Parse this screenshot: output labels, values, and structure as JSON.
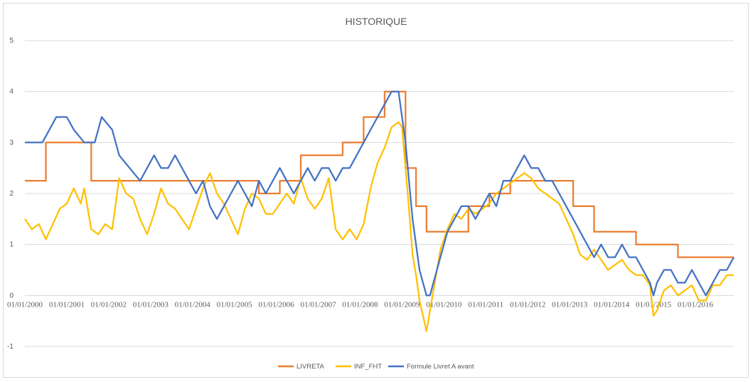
{
  "chart_data": {
    "type": "line",
    "title": "HISTORIQUE",
    "xlabel": "",
    "ylabel": "",
    "ylim": [
      -1,
      5
    ],
    "yticks": [
      -1,
      0,
      1,
      2,
      3,
      4,
      5
    ],
    "grid": true,
    "legend_position": "bottom",
    "xtick_labels": [
      "01/01/2000",
      "01/01/2001",
      "01/01/2002",
      "01/01/2003",
      "01/01/2004",
      "01/01/2005",
      "01/01/2006",
      "01/01/2007",
      "01/01/2008",
      "01/01/2009",
      "01/01/2010",
      "01/01/2011",
      "01/01/2012",
      "01/01/2013",
      "01/01/2014",
      "01/01/2015",
      "01/01/2016"
    ],
    "x_range": [
      "2000-01",
      "2016-12"
    ],
    "series": [
      {
        "name": "LIVRETA",
        "color": "#ed7d31",
        "points": [
          [
            "2000-01",
            2.25
          ],
          [
            "2000-07",
            2.25
          ],
          [
            "2000-07",
            3.0
          ],
          [
            "2001-08",
            3.0
          ],
          [
            "2001-08",
            2.25
          ],
          [
            "2003-08",
            2.25
          ],
          [
            "2003-08",
            2.25
          ],
          [
            "2005-08",
            2.25
          ],
          [
            "2005-08",
            2.0
          ],
          [
            "2006-02",
            2.0
          ],
          [
            "2006-02",
            2.25
          ],
          [
            "2006-08",
            2.25
          ],
          [
            "2006-08",
            2.75
          ],
          [
            "2007-08",
            2.75
          ],
          [
            "2007-08",
            3.0
          ],
          [
            "2008-02",
            3.0
          ],
          [
            "2008-02",
            3.5
          ],
          [
            "2008-08",
            3.5
          ],
          [
            "2008-08",
            4.0
          ],
          [
            "2009-02",
            4.0
          ],
          [
            "2009-02",
            2.5
          ],
          [
            "2009-05",
            2.5
          ],
          [
            "2009-05",
            1.75
          ],
          [
            "2009-08",
            1.75
          ],
          [
            "2009-08",
            1.25
          ],
          [
            "2010-08",
            1.25
          ],
          [
            "2010-08",
            1.75
          ],
          [
            "2011-02",
            1.75
          ],
          [
            "2011-02",
            2.0
          ],
          [
            "2011-08",
            2.0
          ],
          [
            "2011-08",
            2.25
          ],
          [
            "2013-02",
            2.25
          ],
          [
            "2013-02",
            1.75
          ],
          [
            "2013-08",
            1.75
          ],
          [
            "2013-08",
            1.25
          ],
          [
            "2014-08",
            1.25
          ],
          [
            "2014-08",
            1.0
          ],
          [
            "2015-08",
            1.0
          ],
          [
            "2015-08",
            0.75
          ],
          [
            "2016-12",
            0.75
          ]
        ]
      },
      {
        "name": "INF_FHT",
        "color": "#ffc000",
        "points": [
          [
            "2000-01",
            1.5
          ],
          [
            "2000-03",
            1.3
          ],
          [
            "2000-05",
            1.4
          ],
          [
            "2000-07",
            1.1
          ],
          [
            "2000-09",
            1.4
          ],
          [
            "2000-11",
            1.7
          ],
          [
            "2001-01",
            1.8
          ],
          [
            "2001-03",
            2.1
          ],
          [
            "2001-05",
            1.8
          ],
          [
            "2001-06",
            2.1
          ],
          [
            "2001-08",
            1.3
          ],
          [
            "2001-10",
            1.2
          ],
          [
            "2001-12",
            1.4
          ],
          [
            "2002-02",
            1.3
          ],
          [
            "2002-04",
            2.3
          ],
          [
            "2002-06",
            2.0
          ],
          [
            "2002-08",
            1.9
          ],
          [
            "2002-10",
            1.5
          ],
          [
            "2002-12",
            1.2
          ],
          [
            "2003-02",
            1.6
          ],
          [
            "2003-04",
            2.1
          ],
          [
            "2003-06",
            1.8
          ],
          [
            "2003-08",
            1.7
          ],
          [
            "2003-10",
            1.5
          ],
          [
            "2003-12",
            1.3
          ],
          [
            "2004-02",
            1.7
          ],
          [
            "2004-04",
            2.1
          ],
          [
            "2004-06",
            2.4
          ],
          [
            "2004-08",
            2.0
          ],
          [
            "2004-10",
            1.8
          ],
          [
            "2004-12",
            1.5
          ],
          [
            "2005-02",
            1.2
          ],
          [
            "2005-04",
            1.7
          ],
          [
            "2005-06",
            2.0
          ],
          [
            "2005-08",
            1.9
          ],
          [
            "2005-10",
            1.6
          ],
          [
            "2005-12",
            1.6
          ],
          [
            "2006-02",
            1.8
          ],
          [
            "2006-04",
            2.0
          ],
          [
            "2006-06",
            1.8
          ],
          [
            "2006-08",
            2.3
          ],
          [
            "2006-10",
            1.9
          ],
          [
            "2006-12",
            1.7
          ],
          [
            "2007-02",
            1.9
          ],
          [
            "2007-04",
            2.3
          ],
          [
            "2007-06",
            1.3
          ],
          [
            "2007-08",
            1.1
          ],
          [
            "2007-10",
            1.3
          ],
          [
            "2007-12",
            1.1
          ],
          [
            "2008-02",
            1.4
          ],
          [
            "2008-04",
            2.1
          ],
          [
            "2008-06",
            2.6
          ],
          [
            "2008-08",
            2.9
          ],
          [
            "2008-10",
            3.3
          ],
          [
            "2008-12",
            3.4
          ],
          [
            "2009-01",
            3.3
          ],
          [
            "2009-02",
            2.5
          ],
          [
            "2009-03",
            1.7
          ],
          [
            "2009-04",
            0.8
          ],
          [
            "2009-05",
            0.4
          ],
          [
            "2009-06",
            -0.1
          ],
          [
            "2009-07",
            -0.4
          ],
          [
            "2009-08",
            -0.7
          ],
          [
            "2009-09",
            -0.3
          ],
          [
            "2009-10",
            0.1
          ],
          [
            "2009-11",
            0.5
          ],
          [
            "2009-12",
            0.9
          ],
          [
            "2010-02",
            1.3
          ],
          [
            "2010-04",
            1.6
          ],
          [
            "2010-06",
            1.5
          ],
          [
            "2010-08",
            1.7
          ],
          [
            "2010-10",
            1.6
          ],
          [
            "2010-12",
            1.7
          ],
          [
            "2011-02",
            1.8
          ],
          [
            "2011-04",
            2.0
          ],
          [
            "2011-06",
            2.1
          ],
          [
            "2011-08",
            2.2
          ],
          [
            "2011-10",
            2.3
          ],
          [
            "2011-12",
            2.4
          ],
          [
            "2012-02",
            2.3
          ],
          [
            "2012-04",
            2.1
          ],
          [
            "2012-06",
            2.0
          ],
          [
            "2012-08",
            1.9
          ],
          [
            "2012-10",
            1.8
          ],
          [
            "2012-12",
            1.5
          ],
          [
            "2013-02",
            1.2
          ],
          [
            "2013-04",
            0.8
          ],
          [
            "2013-06",
            0.7
          ],
          [
            "2013-08",
            0.9
          ],
          [
            "2013-10",
            0.7
          ],
          [
            "2013-12",
            0.5
          ],
          [
            "2014-02",
            0.6
          ],
          [
            "2014-04",
            0.7
          ],
          [
            "2014-06",
            0.5
          ],
          [
            "2014-08",
            0.4
          ],
          [
            "2014-10",
            0.4
          ],
          [
            "2014-12",
            0.2
          ],
          [
            "2015-01",
            -0.4
          ],
          [
            "2015-02",
            -0.3
          ],
          [
            "2015-04",
            0.1
          ],
          [
            "2015-06",
            0.2
          ],
          [
            "2015-08",
            0.0
          ],
          [
            "2015-10",
            0.1
          ],
          [
            "2015-12",
            0.2
          ],
          [
            "2016-02",
            -0.1
          ],
          [
            "2016-04",
            -0.1
          ],
          [
            "2016-06",
            0.2
          ],
          [
            "2016-08",
            0.2
          ],
          [
            "2016-10",
            0.4
          ],
          [
            "2016-12",
            0.4
          ]
        ]
      },
      {
        "name": "Formule Livret A avant",
        "color": "#4472c4",
        "points": [
          [
            "2000-01",
            3.0
          ],
          [
            "2000-06",
            3.0
          ],
          [
            "2000-08",
            3.25
          ],
          [
            "2000-10",
            3.5
          ],
          [
            "2001-01",
            3.5
          ],
          [
            "2001-03",
            3.25
          ],
          [
            "2001-06",
            3.0
          ],
          [
            "2001-09",
            3.0
          ],
          [
            "2001-11",
            3.5
          ],
          [
            "2002-02",
            3.25
          ],
          [
            "2002-04",
            2.75
          ],
          [
            "2002-07",
            2.5
          ],
          [
            "2002-10",
            2.25
          ],
          [
            "2002-12",
            2.5
          ],
          [
            "2003-02",
            2.75
          ],
          [
            "2003-04",
            2.5
          ],
          [
            "2003-06",
            2.5
          ],
          [
            "2003-08",
            2.75
          ],
          [
            "2003-10",
            2.5
          ],
          [
            "2003-12",
            2.25
          ],
          [
            "2004-02",
            2.0
          ],
          [
            "2004-04",
            2.25
          ],
          [
            "2004-06",
            1.75
          ],
          [
            "2004-08",
            1.5
          ],
          [
            "2004-10",
            1.75
          ],
          [
            "2004-12",
            2.0
          ],
          [
            "2005-02",
            2.25
          ],
          [
            "2005-04",
            2.0
          ],
          [
            "2005-06",
            1.75
          ],
          [
            "2005-08",
            2.25
          ],
          [
            "2005-10",
            2.0
          ],
          [
            "2005-12",
            2.25
          ],
          [
            "2006-02",
            2.5
          ],
          [
            "2006-04",
            2.25
          ],
          [
            "2006-06",
            2.0
          ],
          [
            "2006-08",
            2.25
          ],
          [
            "2006-10",
            2.5
          ],
          [
            "2006-12",
            2.25
          ],
          [
            "2007-02",
            2.5
          ],
          [
            "2007-04",
            2.5
          ],
          [
            "2007-06",
            2.25
          ],
          [
            "2007-08",
            2.5
          ],
          [
            "2007-10",
            2.5
          ],
          [
            "2007-12",
            2.75
          ],
          [
            "2008-02",
            3.0
          ],
          [
            "2008-04",
            3.25
          ],
          [
            "2008-06",
            3.5
          ],
          [
            "2008-08",
            3.75
          ],
          [
            "2008-10",
            4.0
          ],
          [
            "2008-12",
            4.0
          ],
          [
            "2009-01",
            3.5
          ],
          [
            "2009-02",
            3.0
          ],
          [
            "2009-03",
            2.25
          ],
          [
            "2009-04",
            1.5
          ],
          [
            "2009-05",
            1.0
          ],
          [
            "2009-06",
            0.5
          ],
          [
            "2009-07",
            0.25
          ],
          [
            "2009-08",
            0.0
          ],
          [
            "2009-09",
            0.0
          ],
          [
            "2009-10",
            0.25
          ],
          [
            "2009-11",
            0.5
          ],
          [
            "2009-12",
            0.75
          ],
          [
            "2010-02",
            1.25
          ],
          [
            "2010-04",
            1.5
          ],
          [
            "2010-06",
            1.75
          ],
          [
            "2010-08",
            1.75
          ],
          [
            "2010-10",
            1.5
          ],
          [
            "2010-12",
            1.75
          ],
          [
            "2011-02",
            2.0
          ],
          [
            "2011-04",
            1.75
          ],
          [
            "2011-06",
            2.25
          ],
          [
            "2011-08",
            2.25
          ],
          [
            "2011-10",
            2.5
          ],
          [
            "2011-12",
            2.75
          ],
          [
            "2012-02",
            2.5
          ],
          [
            "2012-04",
            2.5
          ],
          [
            "2012-06",
            2.25
          ],
          [
            "2012-08",
            2.25
          ],
          [
            "2012-10",
            2.0
          ],
          [
            "2012-12",
            1.75
          ],
          [
            "2013-02",
            1.5
          ],
          [
            "2013-04",
            1.25
          ],
          [
            "2013-06",
            1.0
          ],
          [
            "2013-08",
            0.75
          ],
          [
            "2013-10",
            1.0
          ],
          [
            "2013-12",
            0.75
          ],
          [
            "2014-02",
            0.75
          ],
          [
            "2014-04",
            1.0
          ],
          [
            "2014-06",
            0.75
          ],
          [
            "2014-08",
            0.75
          ],
          [
            "2014-10",
            0.5
          ],
          [
            "2014-12",
            0.25
          ],
          [
            "2015-01",
            0.0
          ],
          [
            "2015-02",
            0.25
          ],
          [
            "2015-04",
            0.5
          ],
          [
            "2015-06",
            0.5
          ],
          [
            "2015-08",
            0.25
          ],
          [
            "2015-10",
            0.25
          ],
          [
            "2015-12",
            0.5
          ],
          [
            "2016-02",
            0.25
          ],
          [
            "2016-04",
            0.0
          ],
          [
            "2016-06",
            0.25
          ],
          [
            "2016-08",
            0.5
          ],
          [
            "2016-10",
            0.5
          ],
          [
            "2016-12",
            0.75
          ]
        ]
      }
    ]
  }
}
